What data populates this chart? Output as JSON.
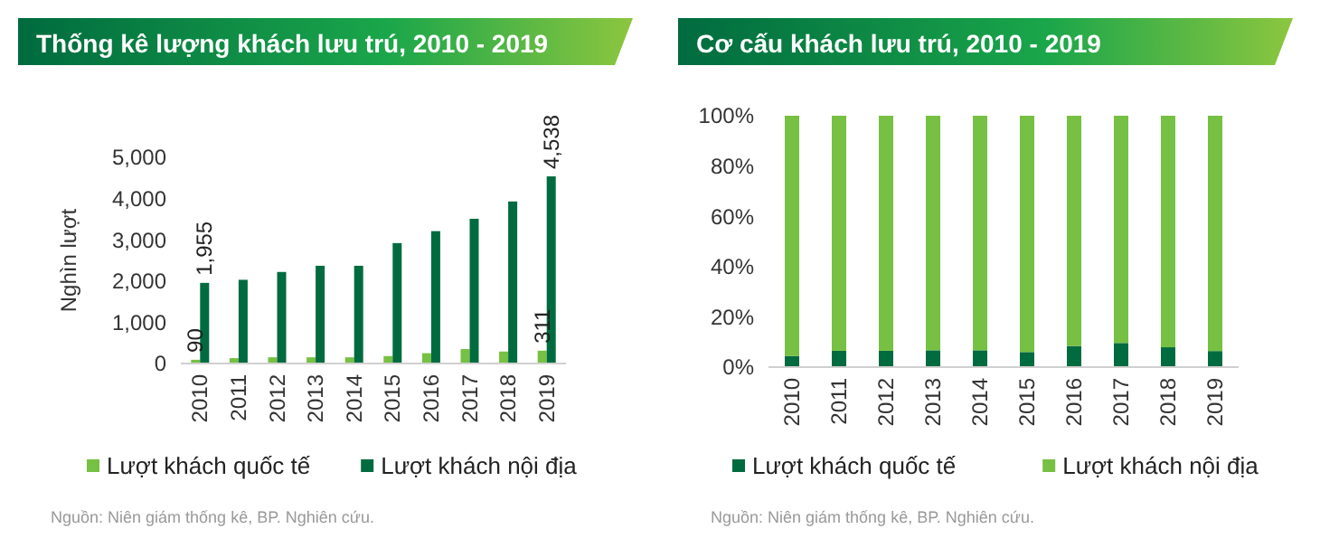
{
  "chart_data": [
    {
      "type": "bar",
      "title": "Thống kê lượng khách lưu trú, 2010 - 2019",
      "ylabel": "Nghìn lượt",
      "categories": [
        "2010",
        "2011",
        "2012",
        "2013",
        "2014",
        "2015",
        "2016",
        "2017",
        "2018",
        "2019"
      ],
      "series": [
        {
          "name": "Lượt khách quốc tế",
          "color": "#76c043",
          "values": [
            90,
            130,
            150,
            150,
            150,
            180,
            250,
            350,
            290,
            311
          ],
          "value_labels": [
            "90",
            null,
            null,
            null,
            null,
            null,
            null,
            null,
            null,
            "311"
          ]
        },
        {
          "name": "Lượt khách nội địa",
          "color": "#006b3f",
          "values": [
            1955,
            2030,
            2220,
            2370,
            2370,
            2920,
            3210,
            3510,
            3930,
            4538
          ],
          "value_labels": [
            "1,955",
            null,
            null,
            null,
            null,
            null,
            null,
            null,
            null,
            "4,538"
          ]
        }
      ],
      "ylim": [
        0,
        5000
      ],
      "yticks": [
        {
          "value": 0,
          "label": "0"
        },
        {
          "value": 1000,
          "label": "1,000"
        },
        {
          "value": 2000,
          "label": "2,000"
        },
        {
          "value": 3000,
          "label": "3,000"
        },
        {
          "value": 4000,
          "label": "4,000"
        },
        {
          "value": 5000,
          "label": "5,000"
        }
      ],
      "grid": false,
      "legend": "bottom",
      "annotations": [
        "Nguồn: Niên giám thống kê, BP. Nghiên cứu."
      ]
    },
    {
      "type": "bar",
      "stacked": true,
      "title": "Cơ cấu khách lưu trú, 2010 - 2019",
      "categories": [
        "2010",
        "2011",
        "2012",
        "2013",
        "2014",
        "2015",
        "2016",
        "2017",
        "2018",
        "2019"
      ],
      "series": [
        {
          "name": "Lượt khách quốc tế",
          "color": "#006b3f",
          "values": [
            4.4,
            6.5,
            6.5,
            6.7,
            6.7,
            6,
            8.4,
            9.6,
            7.9,
            6.4
          ]
        },
        {
          "name": "Lượt khách nội địa",
          "color": "#76c043",
          "values": [
            95.6,
            93.5,
            93.5,
            93.3,
            93.3,
            94,
            91.6,
            90.4,
            92.1,
            93.6
          ]
        }
      ],
      "ylim": [
        0,
        100
      ],
      "yticks": [
        {
          "value": 0,
          "label": "0%"
        },
        {
          "value": 20,
          "label": "20%"
        },
        {
          "value": 40,
          "label": "40%"
        },
        {
          "value": 60,
          "label": "60%"
        },
        {
          "value": 80,
          "label": "80%"
        },
        {
          "value": 100,
          "label": "100%"
        }
      ],
      "grid": false,
      "legend": "bottom",
      "annotations": [
        "Nguồn: Niên giám thống kê, BP. Nghiên cứu."
      ]
    }
  ]
}
